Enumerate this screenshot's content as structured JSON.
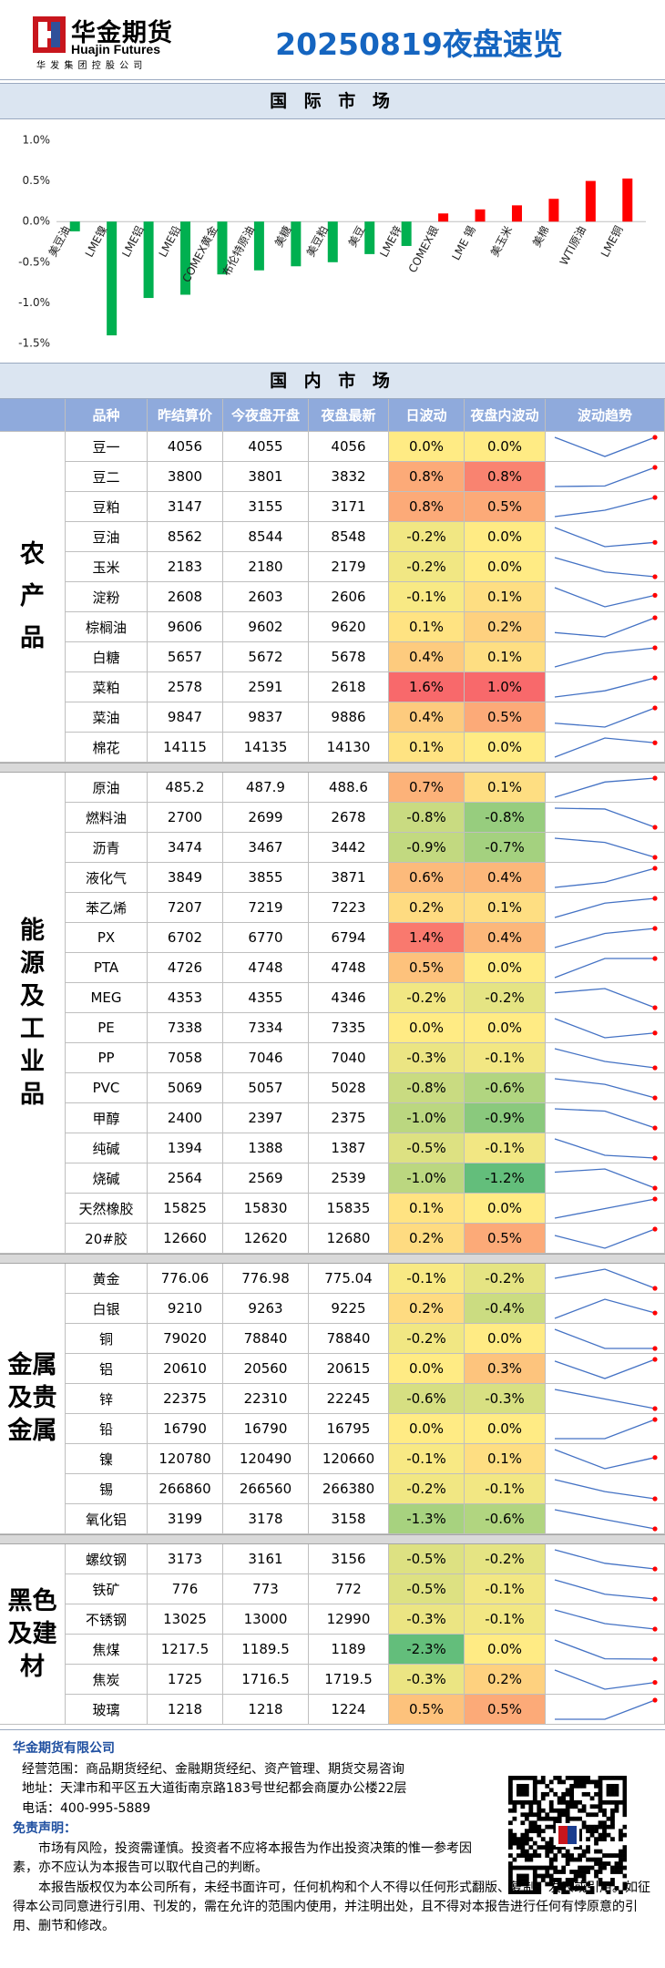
{
  "header": {
    "logo_cn": "华金期货",
    "logo_en": "Huajin Futures",
    "logo_sub": "华 发 集 团 控 股 公 司",
    "title": "20250819夜盘速览"
  },
  "international_heading": "国 际 市 场",
  "chart_data": {
    "type": "bar",
    "categories": [
      "美豆油",
      "LME镍",
      "LME铝",
      "LME铅",
      "COMEX黄金",
      "布伦特原油",
      "美糖",
      "美豆粕",
      "美豆",
      "LME锌",
      "COMEX银",
      "LME 锡",
      "美玉米",
      "美棉",
      "WTI原油",
      "LME铜"
    ],
    "values": [
      -0.12,
      -1.4,
      -0.94,
      -0.9,
      -0.65,
      -0.6,
      -0.55,
      -0.5,
      -0.4,
      -0.3,
      0.1,
      0.15,
      0.2,
      0.28,
      0.5,
      0.53
    ],
    "colors": {
      "positive": "#ff0000",
      "negative": "#00b050"
    },
    "ylim": [
      -1.5,
      1.0
    ],
    "yticks": [
      {
        "value": 1.0,
        "label": "1.0%"
      },
      {
        "value": 0.5,
        "label": "0.5%"
      },
      {
        "value": 0,
        "label": "0.0%"
      },
      {
        "value": -0.5,
        "label": "-0.5%"
      },
      {
        "value": -1.0,
        "label": "-1.0%"
      },
      {
        "value": -1.5,
        "label": "-1.5%"
      }
    ],
    "grid": false
  },
  "domestic": {
    "heading": "国 内 市 场",
    "columns": [
      "品种",
      "昨结算价",
      "今夜盘开盘",
      "夜盘最新",
      "日波动",
      "夜盘内波动",
      "波动趋势"
    ],
    "heat_colors": [
      "#63be7b",
      "#ffeb84",
      "#f8696b"
    ],
    "groups": [
      {
        "name": "农产品",
        "rows": [
          [
            "豆一",
            4056,
            4055,
            4056,
            "0.0%",
            "0.0%"
          ],
          [
            "豆二",
            3800,
            3801,
            3832,
            "0.8%",
            "0.8%"
          ],
          [
            "豆粕",
            3147,
            3155,
            3171,
            "0.8%",
            "0.5%"
          ],
          [
            "豆油",
            8562,
            8544,
            8548,
            "-0.2%",
            "0.0%"
          ],
          [
            "玉米",
            2183,
            2180,
            2179,
            "-0.2%",
            "0.0%"
          ],
          [
            "淀粉",
            2608,
            2603,
            2606,
            "-0.1%",
            "0.1%"
          ],
          [
            "棕榈油",
            9606,
            9602,
            9620,
            "0.1%",
            "0.2%"
          ],
          [
            "白糖",
            5657,
            5672,
            5678,
            "0.4%",
            "0.1%"
          ],
          [
            "菜粕",
            2578,
            2591,
            2618,
            "1.6%",
            "1.0%"
          ],
          [
            "菜油",
            9847,
            9837,
            9886,
            "0.4%",
            "0.5%"
          ],
          [
            "棉花",
            14115,
            14135,
            14130,
            "0.1%",
            "0.0%"
          ]
        ]
      },
      {
        "name": "能源及工业品",
        "rows": [
          [
            "原油",
            485.2,
            487.9,
            488.6,
            "0.7%",
            "0.1%"
          ],
          [
            "燃料油",
            2700,
            2699,
            2678,
            "-0.8%",
            "-0.8%"
          ],
          [
            "沥青",
            3474,
            3467,
            3442,
            "-0.9%",
            "-0.7%"
          ],
          [
            "液化气",
            3849,
            3855,
            3871,
            "0.6%",
            "0.4%"
          ],
          [
            "苯乙烯",
            7207,
            7219,
            7223,
            "0.2%",
            "0.1%"
          ],
          [
            "PX",
            6702,
            6770,
            6794,
            "1.4%",
            "0.4%"
          ],
          [
            "PTA",
            4726,
            4748,
            4748,
            "0.5%",
            "0.0%"
          ],
          [
            "MEG",
            4353,
            4355,
            4346,
            "-0.2%",
            "-0.2%"
          ],
          [
            "PE",
            7338,
            7334,
            7335,
            "0.0%",
            "0.0%"
          ],
          [
            "PP",
            7058,
            7046,
            7040,
            "-0.3%",
            "-0.1%"
          ],
          [
            "PVC",
            5069,
            5057,
            5028,
            "-0.8%",
            "-0.6%"
          ],
          [
            "甲醇",
            2400,
            2397,
            2375,
            "-1.0%",
            "-0.9%"
          ],
          [
            "纯碱",
            1394,
            1388,
            1387,
            "-0.5%",
            "-0.1%"
          ],
          [
            "烧碱",
            2564,
            2569,
            2539,
            "-1.0%",
            "-1.2%"
          ],
          [
            "天然橡胶",
            15825,
            15830,
            15835,
            "0.1%",
            "0.0%"
          ],
          [
            "20#胶",
            12660,
            12620,
            12680,
            "0.2%",
            "0.5%"
          ]
        ]
      },
      {
        "name": "金属及贵金属",
        "rows": [
          [
            "黄金",
            776.06,
            776.98,
            775.04,
            "-0.1%",
            "-0.2%"
          ],
          [
            "白银",
            9210,
            9263,
            9225,
            "0.2%",
            "-0.4%"
          ],
          [
            "铜",
            79020,
            78840,
            78840,
            "-0.2%",
            "0.0%"
          ],
          [
            "铝",
            20610,
            20560,
            20615,
            "0.0%",
            "0.3%"
          ],
          [
            "锌",
            22375,
            22310,
            22245,
            "-0.6%",
            "-0.3%"
          ],
          [
            "铅",
            16790,
            16790,
            16795,
            "0.0%",
            "0.0%"
          ],
          [
            "镍",
            120780,
            120490,
            120660,
            "-0.1%",
            "0.1%"
          ],
          [
            "锡",
            266860,
            266560,
            266380,
            "-0.2%",
            "-0.1%"
          ],
          [
            "氧化铝",
            3199,
            3178,
            3158,
            "-1.3%",
            "-0.6%"
          ]
        ]
      },
      {
        "name": "黑色及建材",
        "rows": [
          [
            "螺纹钢",
            3173,
            3161,
            3156,
            "-0.5%",
            "-0.2%"
          ],
          [
            "铁矿",
            776,
            773,
            772,
            "-0.5%",
            "-0.1%"
          ],
          [
            "不锈钢",
            13025,
            13000,
            12990,
            "-0.3%",
            "-0.1%"
          ],
          [
            "焦煤",
            1217.5,
            1189.5,
            1189,
            "-2.3%",
            "0.0%"
          ],
          [
            "焦炭",
            1725,
            1716.5,
            1719.5,
            "-0.3%",
            "0.2%"
          ],
          [
            "玻璃",
            1218,
            1218,
            1224,
            "0.5%",
            "0.5%"
          ]
        ]
      }
    ]
  },
  "footer": {
    "company": "华金期货有限公司",
    "scope": "经营范围：商品期货经纪、金融期货经纪、资产管理、期货交易咨询",
    "address": "地址：天津市和平区五大道街南京路183号世纪都会商厦办公楼22层",
    "phone": "电话：400-995-5889",
    "disclaimer_title": "免责声明：",
    "disclaimer": [
      "市场有风险，投资需谨慎。投资者不应将本报告为作出投资决策的惟一参考因素，亦不应认为本报告可以取代自己的判断。",
      "本报告版权仅为本公司所有，未经书面许可，任何机构和个人不得以任何形式翻版、复制、发表或引用。如征得本公司同意进行引用、刊发的，需在允许的范围内使用，并注明出处，且不得对本报告进行任何有悖原意的引用、删节和修改。"
    ]
  }
}
